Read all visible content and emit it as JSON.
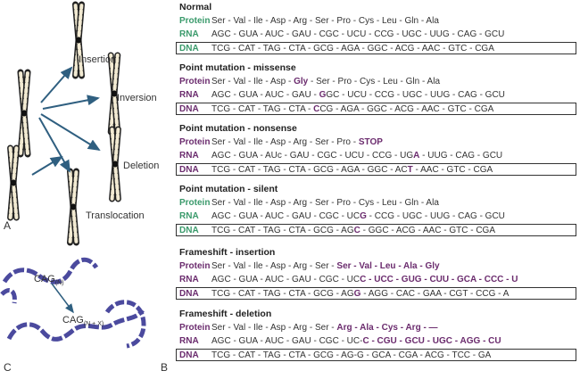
{
  "panel_labels": {
    "a": "A",
    "b": "B",
    "c": "C"
  },
  "chromosome_labels": {
    "insertion": "Insertion",
    "inversion": "Inversion",
    "deletion": "Deletion",
    "translocation": "Translocation"
  },
  "repeat_labels": {
    "before_base": "CAG",
    "before_sub": "(N)",
    "after_base": "CAG",
    "after_sub": "(N + X)"
  },
  "row_labels": {
    "protein": "Protein",
    "rna": "RNA",
    "dna": "DNA"
  },
  "colors": {
    "green_label": "#3a9a6b",
    "purple": "#6b2c6e",
    "chromosome_arrow": "#2f5f80",
    "repeat_strand": "#4b4a9e"
  },
  "sections": [
    {
      "title": "Normal",
      "label_color": "green",
      "protein": [
        {
          "t": "Ser - Val - Ile - Asp - Arg - Ser - Pro - Cys - Leu - Gln - Ala"
        }
      ],
      "rna": [
        {
          "t": "AGC - GUA - AUC - GAU - CGC - UCU - CCG - UGC - UUG - CAG - GCU"
        }
      ],
      "dna": [
        {
          "t": "TCG - CAT - TAG - CTA - GCG - AGA - GGC - ACG - AAC - GTC - CGA"
        }
      ]
    },
    {
      "title": "Point mutation - missense",
      "label_color": "purple",
      "protein": [
        {
          "t": "Ser - Val - Ile - Asp - "
        },
        {
          "t": "Gly",
          "hl": true
        },
        {
          "t": " - Ser - Pro - Cys - Leu - Gln - Ala"
        }
      ],
      "rna": [
        {
          "t": "AGC - GUA - AUC - GAU - "
        },
        {
          "t": "G",
          "hl": true
        },
        {
          "t": "GC - UCU - CCG - UGC - UUG - CAG - GCU"
        }
      ],
      "dna": [
        {
          "t": "TCG - CAT - TAG - CTA - "
        },
        {
          "t": "C",
          "hl": true
        },
        {
          "t": "CG - AGA - GGC - ACG - AAC - GTC - CGA"
        }
      ]
    },
    {
      "title": "Point mutation - nonsense",
      "label_color": "purple",
      "protein": [
        {
          "t": "Ser - Val - Ile - Asp - Arg - Ser - Pro - "
        },
        {
          "t": "STOP",
          "hl": true
        }
      ],
      "rna": [
        {
          "t": "AGC - GUA - AUc - GAU - CGC - UCU - CCG - UG"
        },
        {
          "t": "A",
          "hl": true
        },
        {
          "t": " - UUG - CAG - GCU"
        }
      ],
      "dna": [
        {
          "t": "TCG - CAT - TAG - CTA - GCG - AGA - GGC - AC"
        },
        {
          "t": "T",
          "hl": true
        },
        {
          "t": " - AAC - GTC - CGA"
        }
      ]
    },
    {
      "title": "Point mutation - silent",
      "label_color": "green",
      "protein": [
        {
          "t": "Ser - Val - Ile - Asp - Arg - Ser - Pro - Cys - Leu - Gln - Ala"
        }
      ],
      "rna": [
        {
          "t": "AGC - GUA - AUC - GAU - CGC - UC"
        },
        {
          "t": "G",
          "hl": true
        },
        {
          "t": " - CCG - UGC - UUG - CAG - GCU"
        }
      ],
      "dna": [
        {
          "t": "TCG - CAT - TAG - CTA - GCG - AG"
        },
        {
          "t": "C",
          "hl": true
        },
        {
          "t": " - GGC - ACG - AAC - GTC - CGA"
        }
      ]
    },
    {
      "title": "Frameshift - insertion",
      "label_color": "purple",
      "protein": [
        {
          "t": "Ser - Val - Ile - Asp - Arg - Ser - "
        },
        {
          "t": "Ser - Val - Leu - Ala - Gly",
          "hl": true
        }
      ],
      "rna": [
        {
          "t": "AGC - GUA - AUC - GAU - CGC - UC"
        },
        {
          "t": "C - UCC - GUG - CUU - GCA - CCC - U",
          "hl": true
        }
      ],
      "dna": [
        {
          "t": "TCG - CAT - TAG - CTA - GCG - AG"
        },
        {
          "t": "G",
          "hl": true
        },
        {
          "t": " - AGG - CAC - GAA - CGT - CCG - A"
        }
      ]
    },
    {
      "title": "Frameshift - deletion",
      "label_color": "purple",
      "protein": [
        {
          "t": "Ser - Val - Ile - Asp - Arg - Ser - "
        },
        {
          "t": "Arg - Ala - Cys - Arg - —",
          "hl": true
        }
      ],
      "rna": [
        {
          "t": "AGC - GUA - AUC - GAU - CGC - UC-"
        },
        {
          "t": "C - CGU - GCU - UGC - AGG - CU",
          "hl": true
        }
      ],
      "dna": [
        {
          "t": "TCG - CAT - TAG - CTA - GCG - AG-G - GCA - CGA - ACG - TCC - GA"
        }
      ]
    }
  ]
}
